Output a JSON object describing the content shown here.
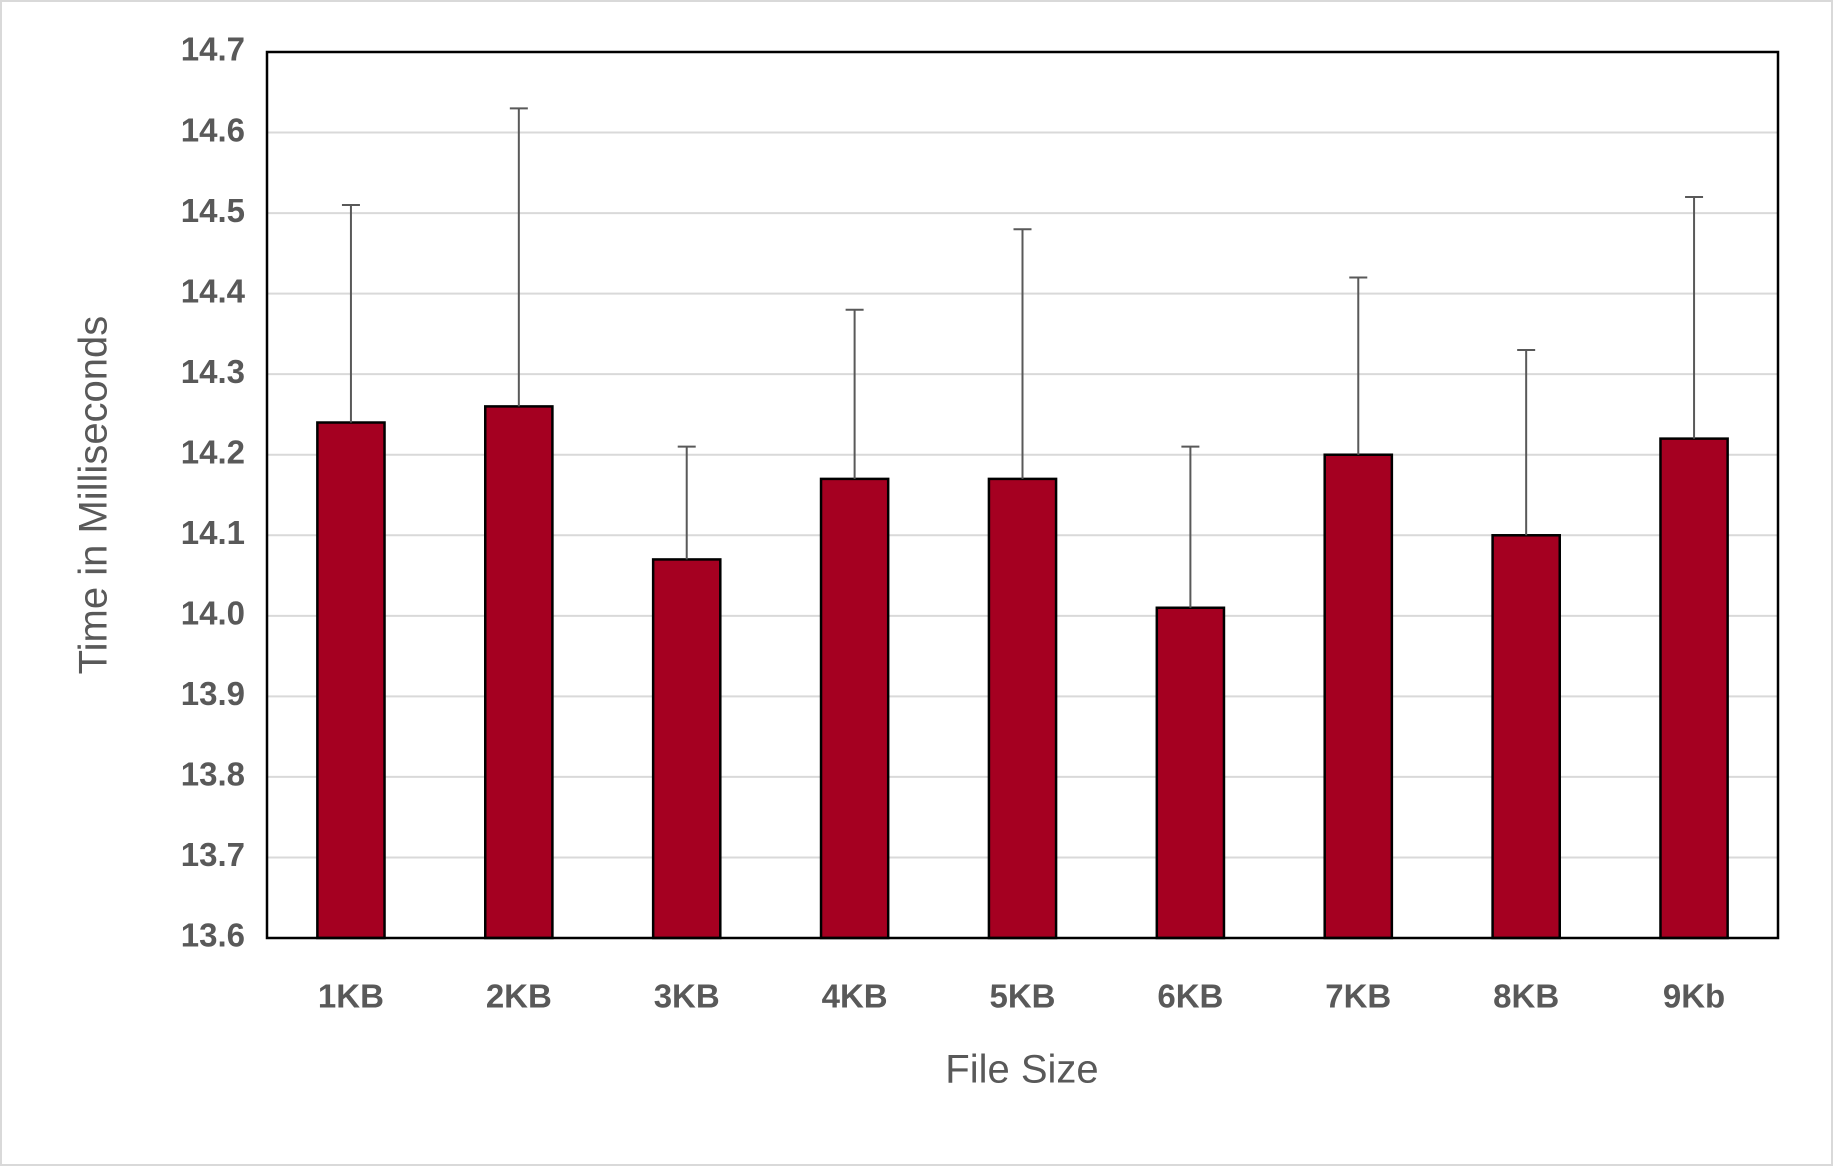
{
  "chart_data": {
    "type": "bar",
    "x_label": "File Size",
    "y_label": "Time in Milliseconds",
    "categories": [
      "1KB",
      "2KB",
      "3KB",
      "4KB",
      "5KB",
      "6KB",
      "7KB",
      "8KB",
      "9Kb"
    ],
    "values": [
      14.24,
      14.26,
      14.07,
      14.17,
      14.17,
      14.01,
      14.2,
      14.1,
      14.22
    ],
    "errors": [
      0.27,
      0.37,
      0.14,
      0.21,
      0.31,
      0.2,
      0.22,
      0.23,
      0.3
    ],
    "color": "#a50021",
    "error_color": "#595959",
    "ylim": [
      13.6,
      14.7
    ],
    "yticks": [
      13.6,
      13.7,
      13.8,
      13.9,
      {
        "value": 14,
        "label": "14.0"
      },
      14.1,
      14.2,
      14.3,
      14.4,
      14.5,
      14.6,
      14.7
    ],
    "grid": true
  }
}
